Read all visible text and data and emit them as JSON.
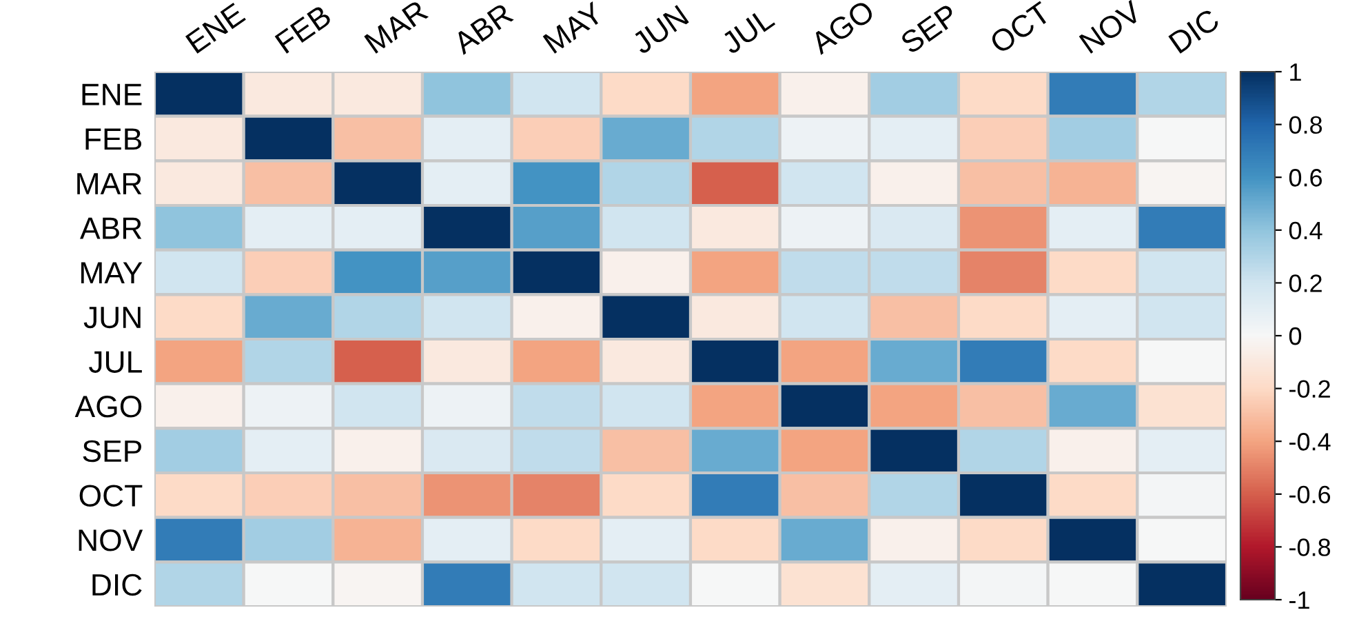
{
  "chart_data": {
    "type": "heatmap",
    "categories": [
      "ENE",
      "FEB",
      "MAR",
      "ABR",
      "MAY",
      "JUN",
      "JUL",
      "AGO",
      "SEP",
      "OCT",
      "NOV",
      "DIC"
    ],
    "y_categories": [
      "ENE",
      "FEB",
      "MAR",
      "ABR",
      "MAY",
      "JUN",
      "JUL",
      "AGO",
      "SEP",
      "OCT",
      "NOV",
      "DIC"
    ],
    "cells": [
      [
        1,
        -0.1,
        -0.1,
        0.4,
        0.2,
        -0.2,
        -0.4,
        -0.05,
        0.35,
        -0.2,
        0.7,
        0.3
      ],
      [
        -0.1,
        1,
        -0.3,
        0.1,
        -0.25,
        0.5,
        0.3,
        0.05,
        0.1,
        -0.25,
        0.35,
        0.0
      ],
      [
        -0.1,
        -0.3,
        1,
        0.1,
        0.6,
        0.3,
        -0.6,
        0.2,
        -0.05,
        -0.3,
        -0.35,
        -0.02
      ],
      [
        0.4,
        0.1,
        0.1,
        1,
        0.55,
        0.2,
        -0.1,
        0.05,
        0.15,
        -0.45,
        0.1,
        0.7
      ],
      [
        0.2,
        -0.25,
        0.6,
        0.55,
        1,
        -0.05,
        -0.4,
        0.25,
        0.25,
        -0.5,
        -0.2,
        0.2
      ],
      [
        -0.2,
        0.5,
        0.3,
        0.2,
        -0.05,
        1,
        -0.1,
        0.2,
        -0.3,
        -0.2,
        0.1,
        0.2
      ],
      [
        -0.4,
        0.3,
        -0.6,
        -0.1,
        -0.4,
        -0.1,
        1,
        -0.4,
        0.5,
        0.7,
        -0.2,
        0.0
      ],
      [
        -0.05,
        0.05,
        0.2,
        0.05,
        0.25,
        0.2,
        -0.4,
        1,
        -0.4,
        -0.3,
        0.5,
        -0.15
      ],
      [
        0.35,
        0.1,
        -0.05,
        0.15,
        0.25,
        -0.3,
        0.5,
        -0.4,
        1,
        0.3,
        -0.05,
        0.1
      ],
      [
        -0.2,
        -0.25,
        -0.3,
        -0.45,
        -0.5,
        -0.2,
        0.7,
        -0.3,
        0.3,
        1,
        -0.2,
        0.02
      ],
      [
        0.7,
        0.35,
        -0.35,
        0.1,
        -0.2,
        0.1,
        -0.2,
        0.5,
        -0.05,
        -0.2,
        1,
        0.0
      ],
      [
        0.3,
        0.0,
        -0.02,
        0.7,
        0.2,
        0.2,
        0.0,
        -0.15,
        0.1,
        0.02,
        0.0,
        1
      ]
    ],
    "clim": [
      -1,
      1
    ],
    "cticks": [
      -1,
      -0.8,
      -0.6,
      -0.4,
      -0.2,
      0,
      0.2,
      0.4,
      0.6,
      0.8,
      1
    ]
  }
}
